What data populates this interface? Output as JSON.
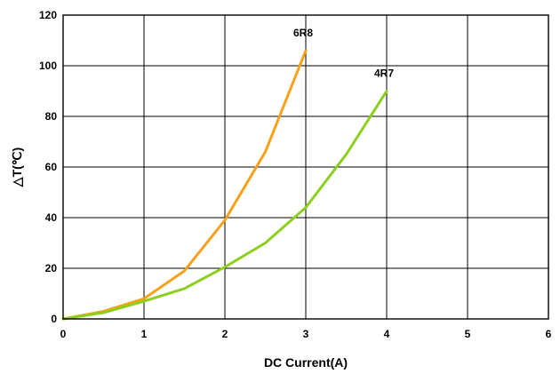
{
  "chart_data": {
    "type": "line",
    "xlabel": "DC Current(A)",
    "ylabel": "△T(℃)",
    "xlim": [
      0,
      6
    ],
    "ylim": [
      0,
      120
    ],
    "x_ticks": [
      "0",
      "1",
      "2",
      "3",
      "4",
      "5",
      "6"
    ],
    "y_ticks": [
      "0",
      "20",
      "40",
      "60",
      "80",
      "100",
      "120"
    ],
    "grid": true,
    "legend": "none",
    "series": [
      {
        "name": "6R8",
        "color": "#f7a11a",
        "x": [
          0,
          0.5,
          1,
          1.5,
          2,
          2.5,
          3
        ],
        "y": [
          0,
          3,
          8,
          19,
          39,
          66,
          106
        ]
      },
      {
        "name": "4R7",
        "color": "#8ccf1c",
        "x": [
          0,
          0.5,
          1,
          1.5,
          2,
          2.5,
          3,
          3.5,
          4
        ],
        "y": [
          0,
          2.5,
          7,
          12,
          20.5,
          30,
          44,
          65,
          90
        ]
      }
    ]
  }
}
